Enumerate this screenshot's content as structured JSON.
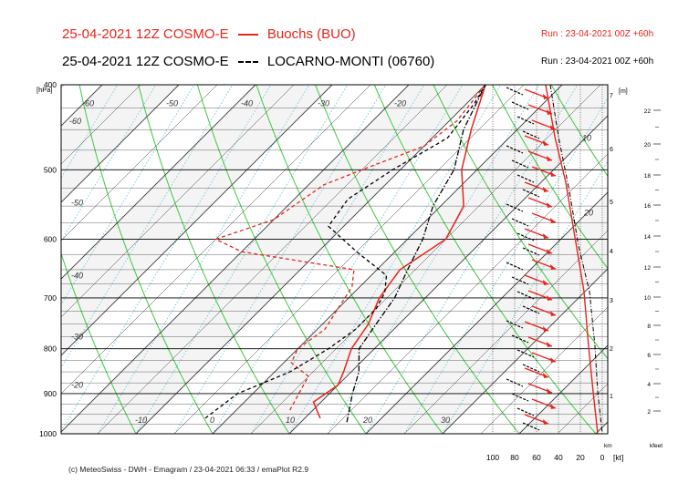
{
  "header": {
    "line1_model": "25-04-2021 12Z COSMO-E",
    "line1_station": "Buochs (BUO)",
    "line1_run": "Run : 23-04-2021 00Z +60h",
    "line2_model": "25-04-2021 12Z COSMO-E",
    "line2_station": "LOCARNO-MONTI (06760)",
    "line2_run": "Run : 23-04-2021 00Z +60h"
  },
  "footer": "(c) MeteoSwiss - DWH - Emagram / 23-04-2021  06:33 / emaPlot R2.9",
  "colors": {
    "series_red": "#e8241c",
    "series_black": "#000000",
    "isotherm": "#3a3a3a",
    "dry_adiabat": "#3ec93e",
    "mixing_ratio": "#7ec8e0"
  },
  "chart_data": {
    "type": "line",
    "xlabel": "",
    "ylabel": "[hPa]",
    "pressure_ticks": [
      "400",
      "500",
      "600",
      "700",
      "800",
      "900",
      "1000"
    ],
    "temperature_ticks": [
      "-60",
      "-50",
      "-40",
      "-30",
      "-20",
      "-60",
      "-50",
      "-40",
      "-30",
      "-20",
      "-10",
      "0",
      "10",
      "20",
      "30",
      "10",
      "20"
    ],
    "height_km_ticks": [
      "7",
      "6",
      "5",
      "4",
      "3",
      "2",
      "1"
    ],
    "height_km_label": "[m]",
    "height_km_axis_label": "km",
    "height_kfeet_ticks": [
      "22",
      "20",
      "18",
      "16",
      "14",
      "12",
      "10",
      "8",
      "6",
      "4",
      "2"
    ],
    "height_kfeet_label": "kfeet",
    "wind_ticks": [
      "100",
      "80",
      "60",
      "40",
      "20",
      "0"
    ],
    "wind_label": "[kt]",
    "series": [
      {
        "name": "Buochs (BUO)",
        "variable": "temperature",
        "style": "solid-red",
        "points": [
          [
            960,
            12
          ],
          [
            920,
            9
          ],
          [
            880,
            10
          ],
          [
            850,
            9
          ],
          [
            800,
            7
          ],
          [
            750,
            6
          ],
          [
            700,
            4
          ],
          [
            650,
            3
          ],
          [
            600,
            5
          ],
          [
            550,
            3
          ],
          [
            500,
            -2
          ],
          [
            450,
            -6
          ],
          [
            400,
            -10
          ]
        ]
      },
      {
        "name": "Buochs (BUO)",
        "variable": "dewpoint",
        "style": "dashed-red",
        "points": [
          [
            940,
            7
          ],
          [
            900,
            6
          ],
          [
            860,
            5
          ],
          [
            830,
            1
          ],
          [
            800,
            0
          ],
          [
            760,
            1
          ],
          [
            720,
            0
          ],
          [
            680,
            -1
          ],
          [
            650,
            -3
          ],
          [
            620,
            -20
          ],
          [
            600,
            -25
          ],
          [
            570,
            -20
          ],
          [
            520,
            -18
          ],
          [
            500,
            -15
          ],
          [
            470,
            -10
          ],
          [
            440,
            -9
          ],
          [
            400,
            -10
          ]
        ]
      },
      {
        "name": "LOCARNO-MONTI (06760)",
        "variable": "temperature",
        "style": "dashdot-black",
        "points": [
          [
            970,
            16
          ],
          [
            900,
            13
          ],
          [
            850,
            11
          ],
          [
            800,
            8
          ],
          [
            750,
            7
          ],
          [
            700,
            6
          ],
          [
            650,
            4
          ],
          [
            600,
            2
          ],
          [
            550,
            -1
          ],
          [
            500,
            -3
          ],
          [
            450,
            -7
          ],
          [
            400,
            -10
          ]
        ]
      },
      {
        "name": "LOCARNO-MONTI (06760)",
        "variable": "dewpoint",
        "style": "dashed-black",
        "points": [
          [
            960,
            -3
          ],
          [
            900,
            -2
          ],
          [
            850,
            2
          ],
          [
            800,
            4
          ],
          [
            760,
            5
          ],
          [
            720,
            5
          ],
          [
            690,
            4
          ],
          [
            660,
            2
          ],
          [
            620,
            -5
          ],
          [
            580,
            -12
          ],
          [
            540,
            -13
          ],
          [
            500,
            -11
          ],
          [
            460,
            -8
          ],
          [
            420,
            -9
          ],
          [
            400,
            -10
          ]
        ]
      }
    ]
  }
}
